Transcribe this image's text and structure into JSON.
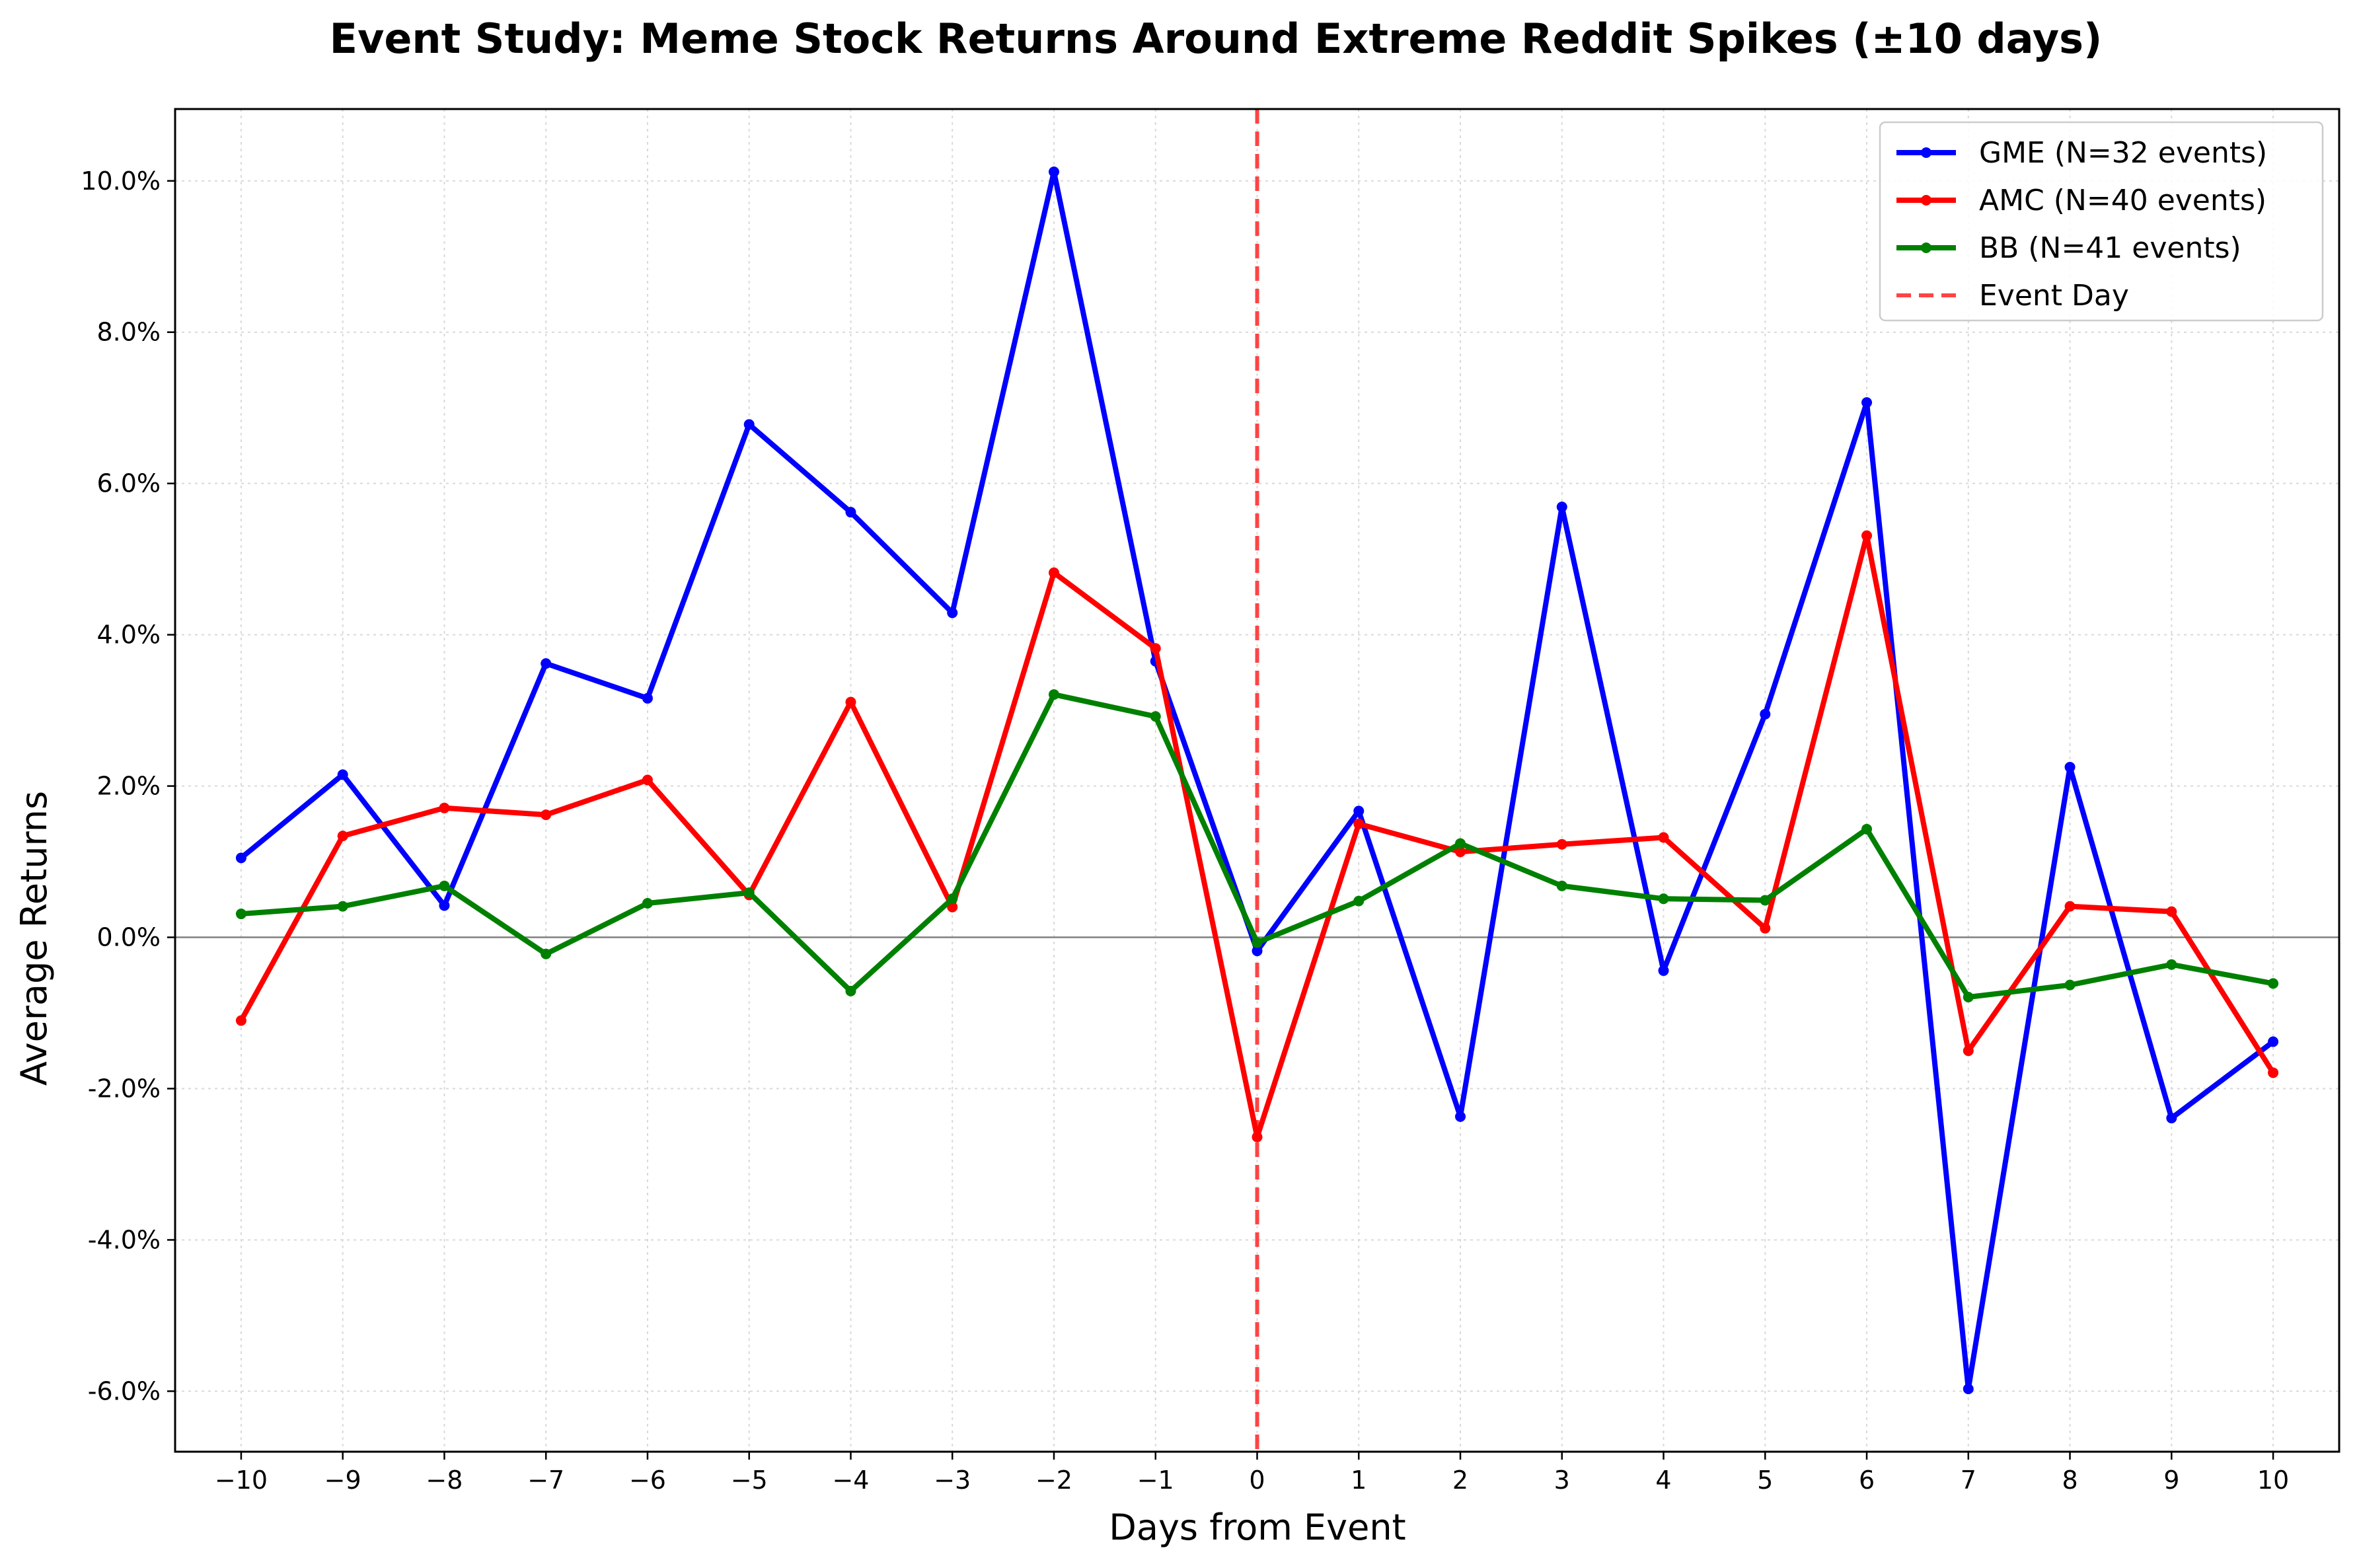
{
  "chart_data": {
    "type": "line",
    "title": "Event Study: Meme Stock Returns Around Extreme Reddit Spikes (±10 days)",
    "xlabel": "Days from Event",
    "ylabel": "Average Returns",
    "x": [
      -10,
      -9,
      -8,
      -7,
      -6,
      -5,
      -4,
      -3,
      -2,
      -1,
      0,
      1,
      2,
      3,
      4,
      5,
      6,
      7,
      8,
      9,
      10
    ],
    "x_tick_labels": [
      "−10",
      "−9",
      "−8",
      "−7",
      "−6",
      "−5",
      "−4",
      "−3",
      "−2",
      "−1",
      "0",
      "1",
      "2",
      "3",
      "4",
      "5",
      "6",
      "7",
      "8",
      "9",
      "10"
    ],
    "xlim": [
      -10.65,
      10.65
    ],
    "ylim": [
      -6.8,
      10.95
    ],
    "y_ticks": [
      -6,
      -4,
      -2,
      0,
      2,
      4,
      6,
      8,
      10
    ],
    "y_tick_labels": [
      "-6.0%",
      "-4.0%",
      "-2.0%",
      "0.0%",
      "2.0%",
      "4.0%",
      "6.0%",
      "8.0%",
      "10.0%"
    ],
    "y_unit": "percent",
    "grid": true,
    "zero_line": true,
    "event_line_x": 0,
    "legend_position": "top-right",
    "series": [
      {
        "name": "GME (N=32 events)",
        "color": "#0000ff",
        "values": [
          1.05,
          2.15,
          0.42,
          3.62,
          3.16,
          6.78,
          5.62,
          4.29,
          10.12,
          3.65,
          -0.18,
          1.67,
          -2.37,
          5.69,
          -0.44,
          2.95,
          7.07,
          -5.97,
          2.25,
          -2.39,
          -1.38
        ]
      },
      {
        "name": "AMC (N=40 events)",
        "color": "#ff0000",
        "values": [
          -1.1,
          1.34,
          1.71,
          1.62,
          2.08,
          0.56,
          3.11,
          0.4,
          4.82,
          3.82,
          -2.64,
          1.5,
          1.13,
          1.23,
          1.32,
          0.12,
          5.31,
          -1.5,
          0.41,
          0.34,
          -1.79
        ]
      },
      {
        "name": "BB (N=41 events)",
        "color": "#008000",
        "values": [
          0.31,
          0.41,
          0.68,
          -0.22,
          0.45,
          0.59,
          -0.71,
          0.51,
          3.21,
          2.92,
          -0.07,
          0.48,
          1.24,
          0.68,
          0.51,
          0.49,
          1.43,
          -0.79,
          -0.63,
          -0.36,
          -0.61
        ]
      }
    ],
    "event_line": {
      "name": "Event Day",
      "color": "#ff4444"
    }
  }
}
